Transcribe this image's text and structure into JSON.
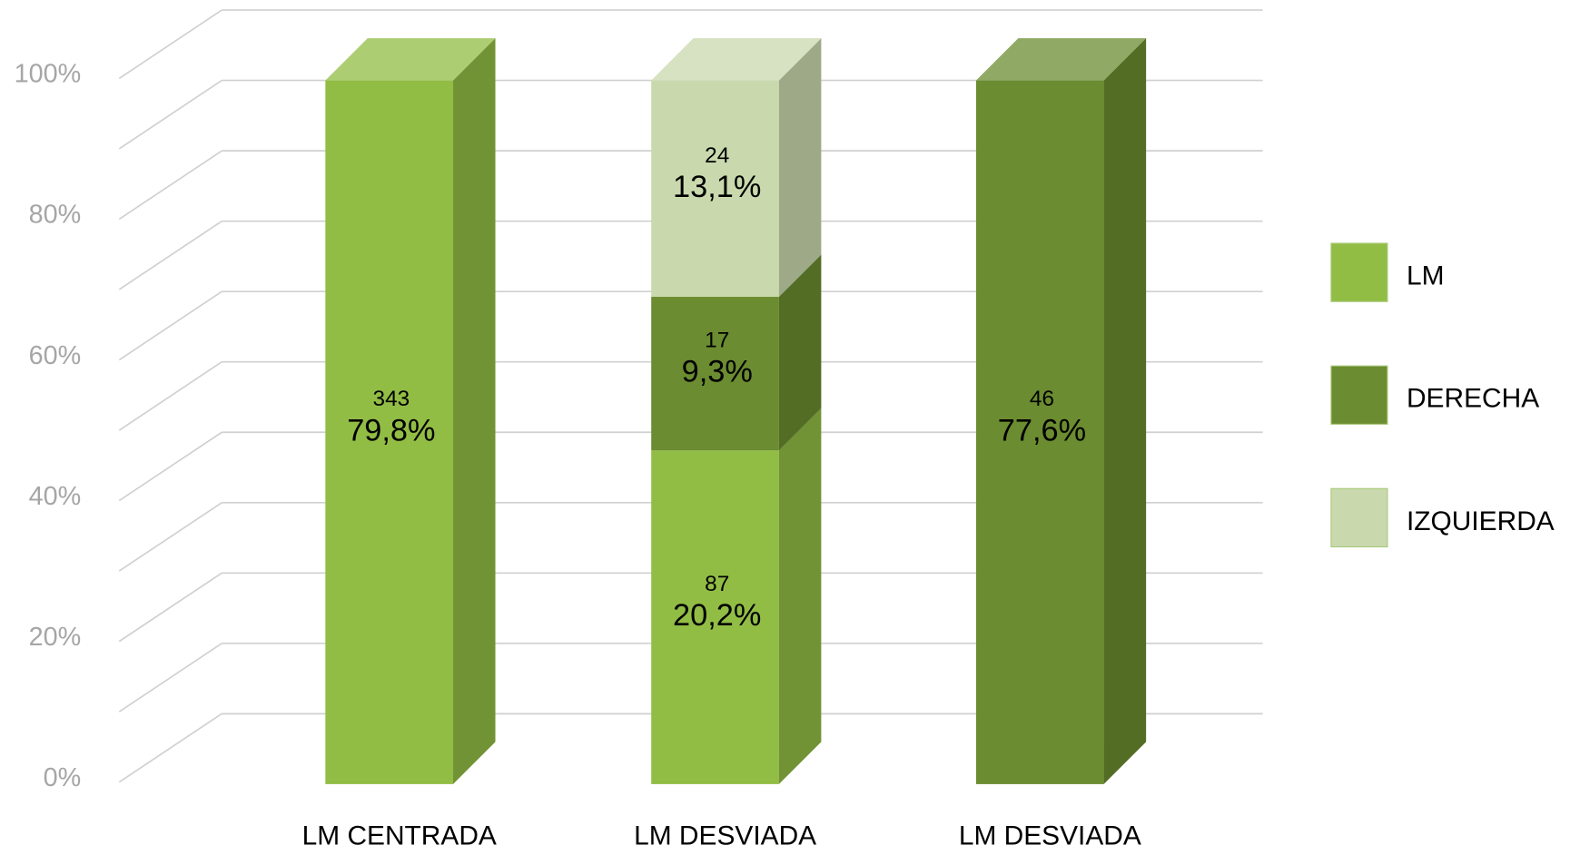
{
  "chart_data": {
    "type": "bar",
    "stacking": "percent",
    "categories": [
      "LM CENTRADA",
      "LM DESVIADA",
      "LM DESVIADA"
    ],
    "series": [
      {
        "name": "LM",
        "color": "#92bd45",
        "values": [
          79.8,
          20.2,
          null
        ],
        "value_labels": [
          "79,8%",
          "20,2%",
          null
        ],
        "counts": [
          343,
          87,
          null
        ]
      },
      {
        "name": "DERECHA",
        "color": "#6b8c30",
        "values": [
          null,
          9.3,
          77.6
        ],
        "value_labels": [
          null,
          "9,3%",
          "77,6%"
        ],
        "counts": [
          null,
          17,
          46
        ]
      },
      {
        "name": "IZQUIERDA",
        "color": "#c9d9ad",
        "values": [
          null,
          13.1,
          null
        ],
        "value_labels": [
          null,
          "13,1%",
          null
        ],
        "counts": [
          null,
          24,
          null
        ]
      }
    ],
    "ylim": [
      0,
      100
    ],
    "yticks": [
      {
        "value": 0,
        "label": "0%"
      },
      {
        "value": 20,
        "label": "20%"
      },
      {
        "value": 40,
        "label": "40%"
      },
      {
        "value": 60,
        "label": "60%"
      },
      {
        "value": 80,
        "label": "80%"
      },
      {
        "value": 100,
        "label": "100%"
      }
    ],
    "grid_yticks": [
      0,
      10,
      20,
      30,
      40,
      50,
      60,
      70,
      80,
      90,
      100
    ],
    "grid": true,
    "legend": "right"
  }
}
